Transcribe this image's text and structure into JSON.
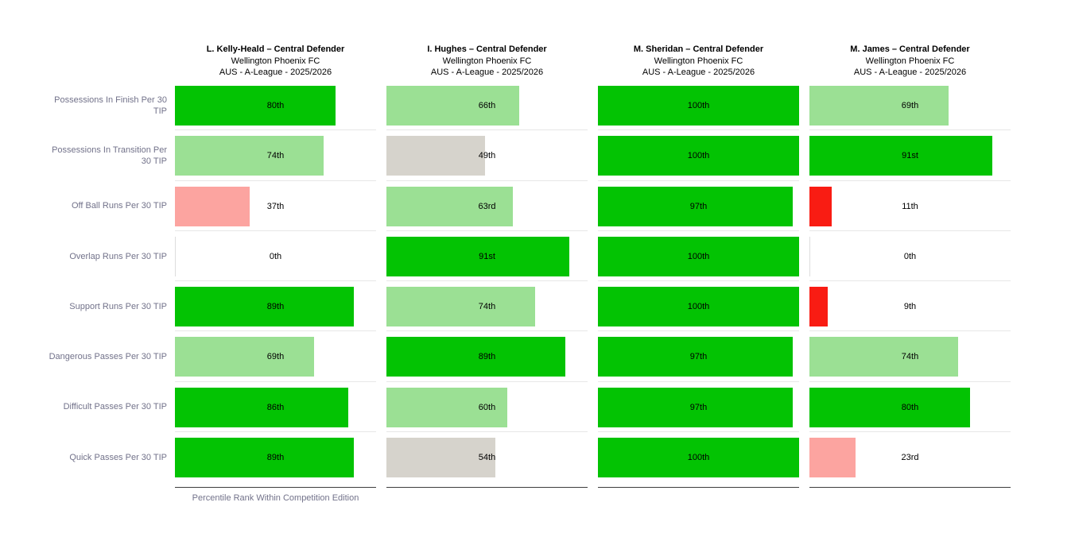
{
  "chart_data": {
    "type": "bar",
    "orientation": "horizontal",
    "title": "",
    "xlabel": "Percentile Rank Within Competition Edition",
    "ylabel": "",
    "xlim": [
      0,
      100
    ],
    "grid": "light row separators per column, dark baseline under each column",
    "legend_position": "none",
    "value_format": "ordinal percentile (e.g. 80th)",
    "categories": [
      "Possessions In Finish Per 30 TIP",
      "Possessions In Transition Per 30 TIP",
      "Off Ball Runs Per 30 TIP",
      "Overlap Runs Per 30 TIP",
      "Support Runs Per 30 TIP",
      "Dangerous Passes Per 30 TIP",
      "Difficult Passes Per 30 TIP",
      "Quick Passes Per 30 TIP"
    ],
    "series": [
      {
        "name": "L. Kelly-Heald – Central Defender",
        "team": "Wellington Phoenix FC",
        "competition": "AUS - A-League - 2025/2026",
        "values": [
          80,
          74,
          37,
          0,
          89,
          69,
          86,
          89
        ],
        "labels": [
          "80th",
          "74th",
          "37th",
          "0th",
          "89th",
          "69th",
          "86th",
          "89th"
        ],
        "bar_colors": [
          "green",
          "light_green",
          "pink",
          "none",
          "green",
          "light_green",
          "green",
          "green"
        ]
      },
      {
        "name": "I. Hughes – Central Defender",
        "team": "Wellington Phoenix FC",
        "competition": "AUS - A-League - 2025/2026",
        "values": [
          66,
          49,
          63,
          91,
          74,
          89,
          60,
          54
        ],
        "labels": [
          "66th",
          "49th",
          "63rd",
          "91st",
          "74th",
          "89th",
          "60th",
          "54th"
        ],
        "bar_colors": [
          "light_green",
          "gray",
          "light_green",
          "green",
          "light_green",
          "green",
          "light_green",
          "gray"
        ]
      },
      {
        "name": "M. Sheridan – Central Defender",
        "team": "Wellington Phoenix FC",
        "competition": "AUS - A-League - 2025/2026",
        "values": [
          100,
          100,
          97,
          100,
          100,
          97,
          97,
          100
        ],
        "labels": [
          "100th",
          "100th",
          "97th",
          "100th",
          "100th",
          "97th",
          "97th",
          "100th"
        ],
        "bar_colors": [
          "green",
          "green",
          "green",
          "green",
          "green",
          "green",
          "green",
          "green"
        ]
      },
      {
        "name": "M. James – Central Defender",
        "team": "Wellington Phoenix FC",
        "competition": "AUS - A-League - 2025/2026",
        "values": [
          69,
          91,
          11,
          0,
          9,
          74,
          80,
          23
        ],
        "labels": [
          "69th",
          "91st",
          "11th",
          "0th",
          "9th",
          "74th",
          "80th",
          "23rd"
        ],
        "bar_colors": [
          "light_green",
          "green",
          "red",
          "none",
          "red",
          "light_green",
          "green",
          "pink"
        ]
      }
    ],
    "palette": {
      "green": "#03c303",
      "light_green": "#9be094",
      "gray": "#d6d3cc",
      "pink": "#fca4a0",
      "red": "#f91c13",
      "none": "transparent"
    }
  }
}
